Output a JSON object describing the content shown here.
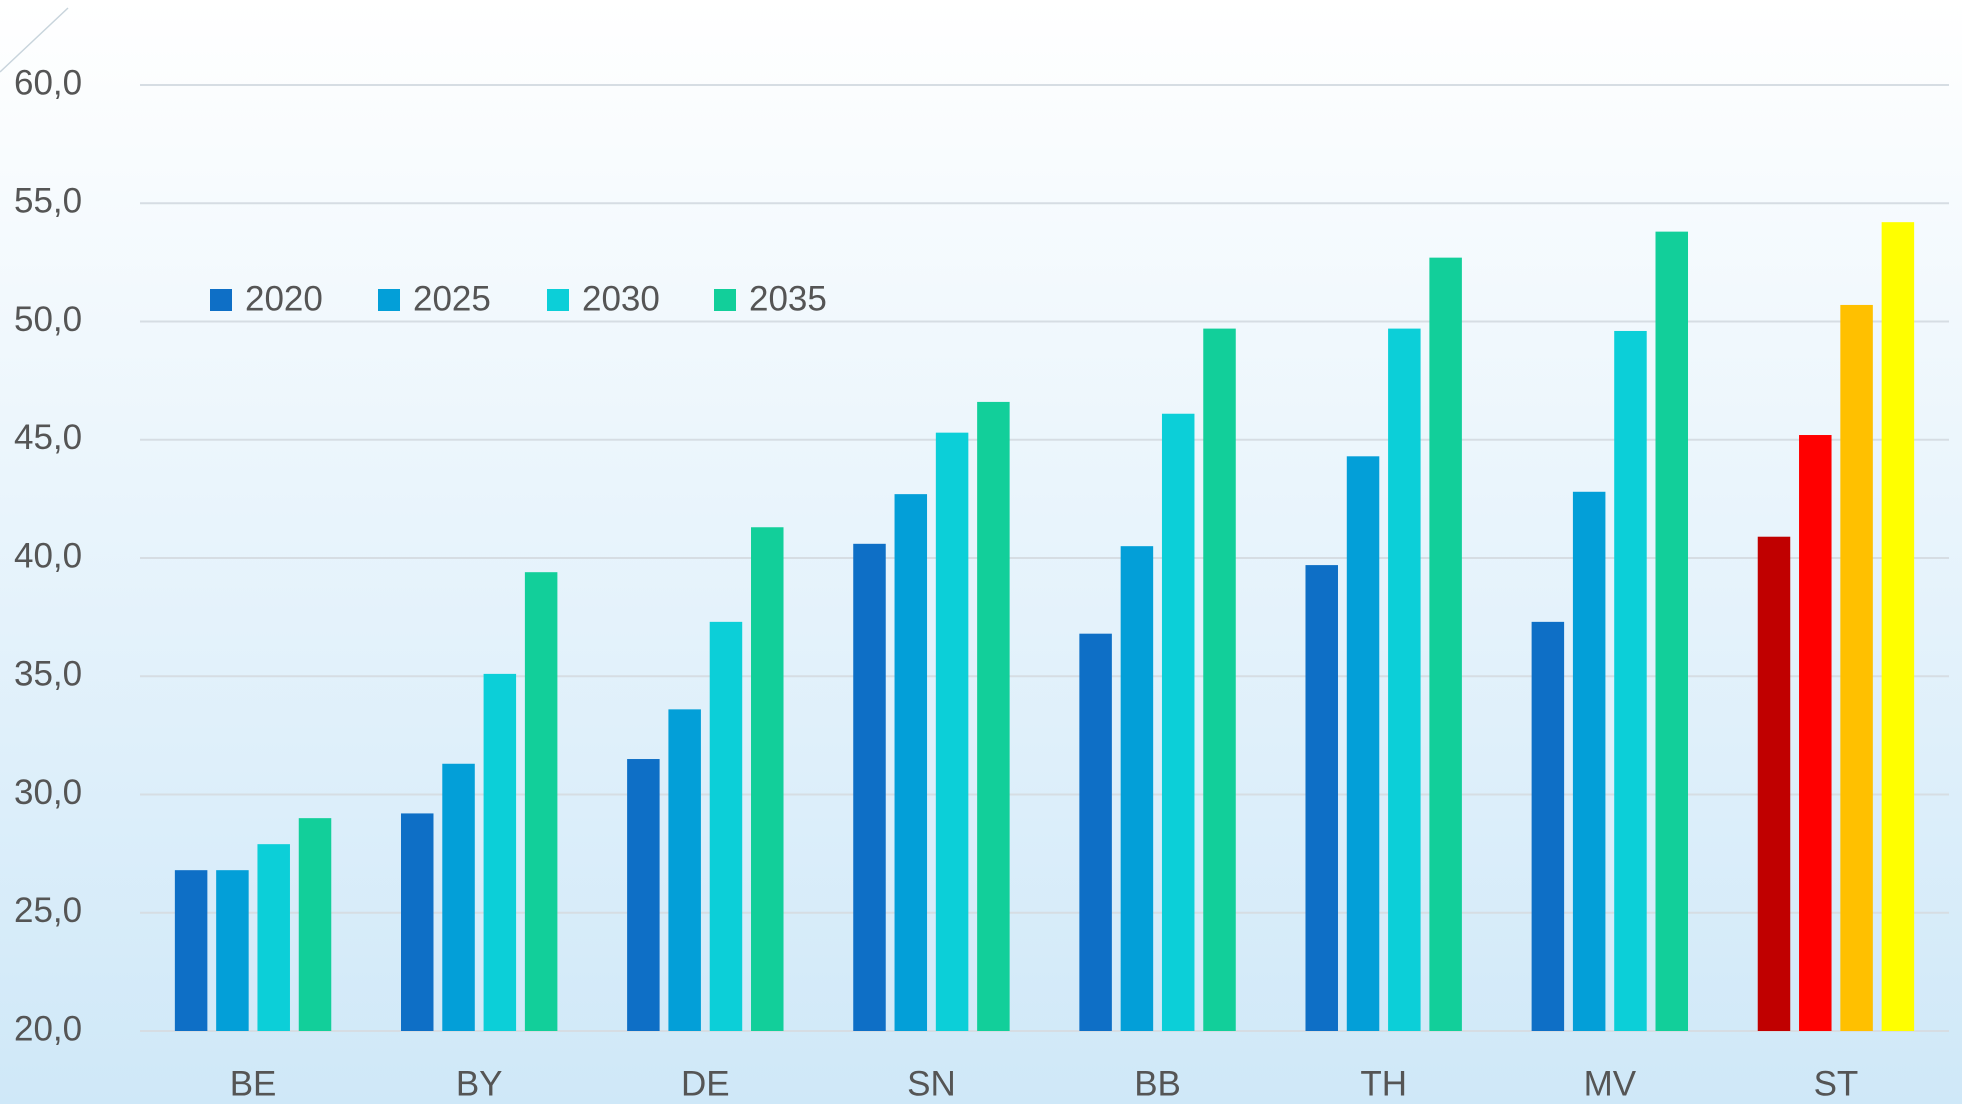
{
  "chart_data": {
    "type": "bar",
    "categories": [
      "BE",
      "BY",
      "DE",
      "SN",
      "BB",
      "TH",
      "MV",
      "ST"
    ],
    "series": [
      {
        "name": "2020",
        "color": "#0e6fc6",
        "colors": [
          "#0e6fc6",
          "#0e6fc6",
          "#0e6fc6",
          "#0e6fc6",
          "#0e6fc6",
          "#0e6fc6",
          "#0e6fc6",
          "#c00000"
        ],
        "values": [
          26.8,
          29.2,
          31.5,
          40.6,
          36.8,
          39.7,
          37.3,
          40.9
        ]
      },
      {
        "name": "2025",
        "color": "#039fd8",
        "colors": [
          "#039fd8",
          "#039fd8",
          "#039fd8",
          "#039fd8",
          "#039fd8",
          "#039fd8",
          "#039fd8",
          "#ff0000"
        ],
        "values": [
          26.8,
          31.3,
          33.6,
          42.7,
          40.5,
          44.3,
          42.8,
          45.2
        ]
      },
      {
        "name": "2030",
        "color": "#0ccfd8",
        "colors": [
          "#0ccfd8",
          "#0ccfd8",
          "#0ccfd8",
          "#0ccfd8",
          "#0ccfd8",
          "#0ccfd8",
          "#0ccfd8",
          "#ffc000"
        ],
        "values": [
          27.9,
          35.1,
          37.3,
          45.3,
          46.1,
          49.7,
          49.6,
          50.7
        ]
      },
      {
        "name": "2035",
        "color": "#12cf9a",
        "colors": [
          "#12cf9a",
          "#12cf9a",
          "#12cf9a",
          "#12cf9a",
          "#12cf9a",
          "#12cf9a",
          "#12cf9a",
          "#ffff00"
        ],
        "values": [
          29.0,
          39.4,
          41.3,
          46.6,
          49.7,
          52.7,
          53.8,
          54.2
        ]
      }
    ],
    "ylim": [
      20,
      60
    ],
    "yticks": [
      {
        "value": 20,
        "label": "20,0"
      },
      {
        "value": 25,
        "label": "25,0"
      },
      {
        "value": 30,
        "label": "30,0"
      },
      {
        "value": 35,
        "label": "35,0"
      },
      {
        "value": 40,
        "label": "40,0"
      },
      {
        "value": 45,
        "label": "45,0"
      },
      {
        "value": 50,
        "label": "50,0"
      },
      {
        "value": 55,
        "label": "55,0"
      },
      {
        "value": 60,
        "label": "60,0"
      }
    ],
    "grid": true,
    "legend": "top-left"
  }
}
